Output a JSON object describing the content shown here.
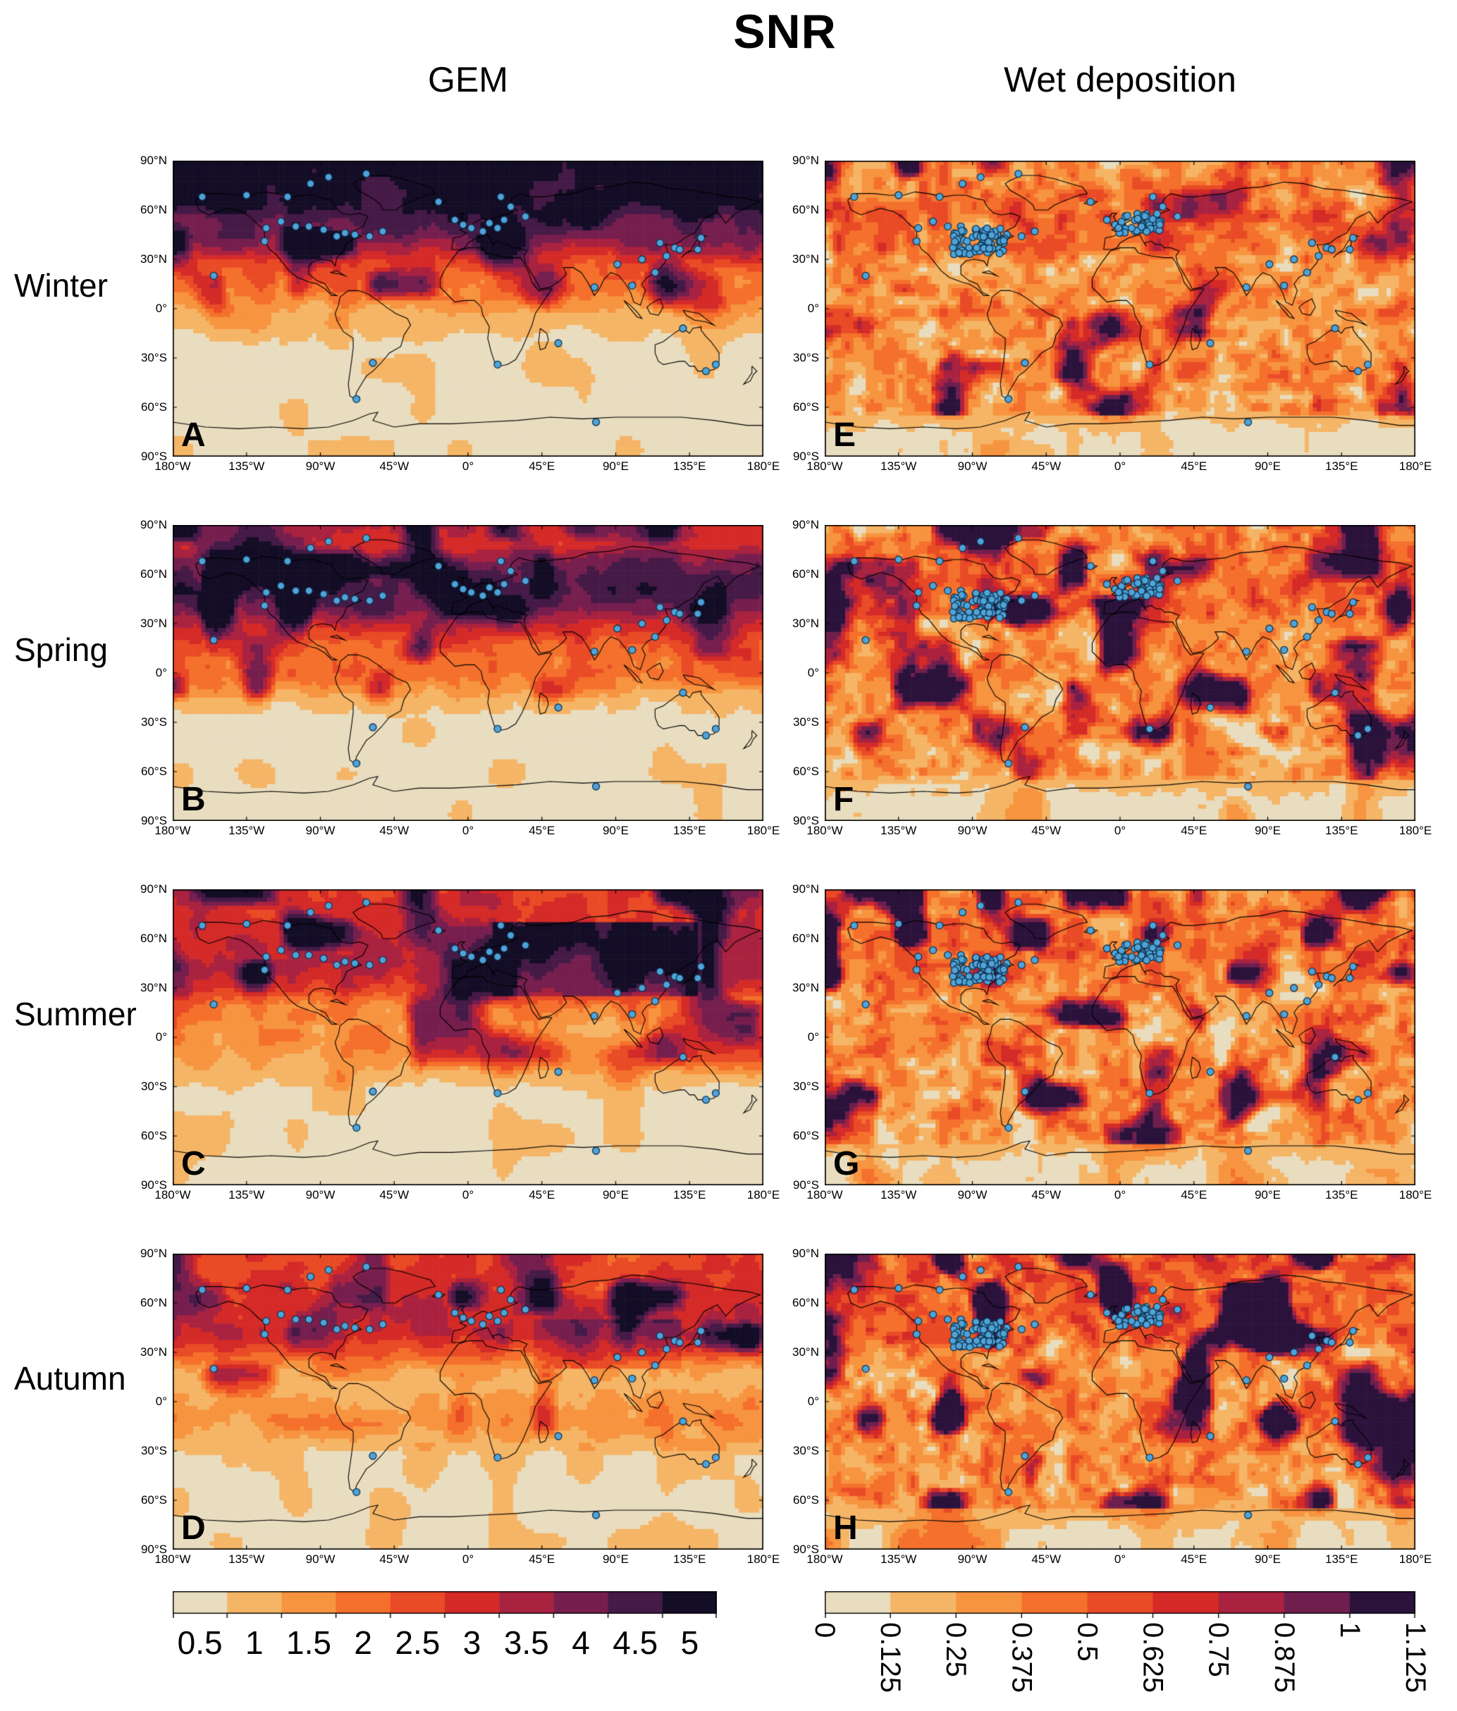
{
  "title": "SNR",
  "columns": [
    {
      "label": "GEM"
    },
    {
      "label": "Wet deposition"
    }
  ],
  "rows": [
    "Winter",
    "Spring",
    "Summer",
    "Autumn"
  ],
  "axes": {
    "lat_ticks": [
      "90°N",
      "60°N",
      "30°N",
      "0°",
      "30°S",
      "60°S",
      "90°S"
    ],
    "lon_ticks": [
      "180°W",
      "135°W",
      "90°W",
      "45°W",
      "0°",
      "45°E",
      "90°E",
      "135°E",
      "180°E"
    ],
    "lon_range": [
      -180,
      180
    ],
    "lat_range": [
      -90,
      90
    ]
  },
  "colorbars": {
    "gem": {
      "ticks": [
        "0.5",
        "1",
        "1.5",
        "2",
        "2.5",
        "3",
        "3.5",
        "4",
        "4.5",
        "5"
      ],
      "colors": [
        "#e9ddc0",
        "#f5b566",
        "#f79440",
        "#f4702c",
        "#e94b26",
        "#d42a28",
        "#a92240",
        "#761f4e",
        "#451a47",
        "#140d26"
      ]
    },
    "wet": {
      "ticks": [
        "0",
        "0.125",
        "0.25",
        "0.375",
        "0.5",
        "0.625",
        "0.75",
        "0.875",
        "1",
        "1.125"
      ],
      "colors": [
        "#e9ddc0",
        "#f5b566",
        "#f79440",
        "#f4702c",
        "#e94b26",
        "#d42a28",
        "#a92240",
        "#6e1f4e",
        "#2a123b"
      ]
    }
  },
  "chart_data": {
    "type": "heatmap",
    "title": "SNR",
    "layout": "4 seasons (rows) x 2 variables (columns: GEM, Wet deposition); equirectangular world maps with station markers; discrete colorbars below each column",
    "panels": [
      {
        "id": "A",
        "season": "Winter",
        "column": "GEM",
        "col": 0,
        "rowIndex": 0,
        "colorbar": "gem",
        "seed": 11,
        "noise": 0.55,
        "blob": 1.5,
        "lat_profile": [
          [
            90,
            5.1
          ],
          [
            65,
            5.0
          ],
          [
            55,
            4.4
          ],
          [
            45,
            4.1
          ],
          [
            35,
            3.3
          ],
          [
            25,
            2.4
          ],
          [
            15,
            2.0
          ],
          [
            5,
            1.6
          ],
          [
            -5,
            1.0
          ],
          [
            -15,
            0.75
          ],
          [
            -30,
            0.62
          ],
          [
            -90,
            0.58
          ]
        ]
      },
      {
        "id": "E",
        "season": "Winter",
        "column": "Wet deposition",
        "col": 1,
        "rowIndex": 0,
        "colorbar": "wet",
        "seed": 21,
        "noise": 0.26,
        "blob": 0.5,
        "lat_profile": [
          [
            90,
            0.33
          ],
          [
            70,
            0.42
          ],
          [
            55,
            0.5
          ],
          [
            40,
            0.45
          ],
          [
            25,
            0.3
          ],
          [
            10,
            0.33
          ],
          [
            0,
            0.36
          ],
          [
            -20,
            0.32
          ],
          [
            -40,
            0.33
          ],
          [
            -60,
            0.3
          ],
          [
            -68,
            0.15
          ],
          [
            -78,
            0.08
          ],
          [
            -90,
            0.08
          ]
        ]
      },
      {
        "id": "B",
        "season": "Spring",
        "column": "GEM",
        "col": 0,
        "rowIndex": 1,
        "colorbar": "gem",
        "seed": 12,
        "noise": 0.6,
        "blob": 1.5,
        "lat_profile": [
          [
            90,
            3.4
          ],
          [
            78,
            3.2
          ],
          [
            65,
            4.2
          ],
          [
            50,
            4.8
          ],
          [
            38,
            4.2
          ],
          [
            28,
            3.2
          ],
          [
            18,
            2.4
          ],
          [
            8,
            2.1
          ],
          [
            0,
            2.2
          ],
          [
            -8,
            1.7
          ],
          [
            -18,
            0.9
          ],
          [
            -30,
            0.62
          ],
          [
            -90,
            0.58
          ]
        ]
      },
      {
        "id": "F",
        "season": "Spring",
        "column": "Wet deposition",
        "col": 1,
        "rowIndex": 1,
        "colorbar": "wet",
        "seed": 22,
        "noise": 0.26,
        "blob": 0.55,
        "lat_profile": [
          [
            90,
            0.35
          ],
          [
            70,
            0.45
          ],
          [
            55,
            0.5
          ],
          [
            40,
            0.45
          ],
          [
            25,
            0.32
          ],
          [
            10,
            0.33
          ],
          [
            0,
            0.36
          ],
          [
            -20,
            0.33
          ],
          [
            -40,
            0.33
          ],
          [
            -60,
            0.3
          ],
          [
            -68,
            0.15
          ],
          [
            -78,
            0.08
          ],
          [
            -90,
            0.08
          ]
        ]
      },
      {
        "id": "C",
        "season": "Summer",
        "column": "GEM",
        "col": 0,
        "rowIndex": 2,
        "colorbar": "gem",
        "seed": 13,
        "noise": 0.6,
        "blob": 1.7,
        "bias": [
          {
            "lon": [
              15,
              140
            ],
            "lat": [
              25,
              70
            ],
            "add": 1.5
          }
        ],
        "lat_profile": [
          [
            90,
            2.9
          ],
          [
            75,
            3.0
          ],
          [
            60,
            3.3
          ],
          [
            45,
            3.4
          ],
          [
            30,
            2.9
          ],
          [
            18,
            1.8
          ],
          [
            8,
            1.5
          ],
          [
            0,
            1.6
          ],
          [
            -10,
            1.5
          ],
          [
            -20,
            1.1
          ],
          [
            -32,
            0.7
          ],
          [
            -90,
            0.58
          ]
        ]
      },
      {
        "id": "G",
        "season": "Summer",
        "column": "Wet deposition",
        "col": 1,
        "rowIndex": 2,
        "colorbar": "wet",
        "seed": 23,
        "noise": 0.27,
        "blob": 0.62,
        "lat_profile": [
          [
            90,
            0.4
          ],
          [
            70,
            0.45
          ],
          [
            55,
            0.5
          ],
          [
            40,
            0.45
          ],
          [
            25,
            0.35
          ],
          [
            10,
            0.35
          ],
          [
            0,
            0.38
          ],
          [
            -20,
            0.35
          ],
          [
            -40,
            0.35
          ],
          [
            -60,
            0.32
          ],
          [
            -68,
            0.18
          ],
          [
            -78,
            0.1
          ],
          [
            -90,
            0.1
          ]
        ]
      },
      {
        "id": "D",
        "season": "Autumn",
        "column": "GEM",
        "col": 0,
        "rowIndex": 3,
        "colorbar": "gem",
        "seed": 14,
        "noise": 0.55,
        "blob": 1.6,
        "bias": [
          {
            "lon": [
              40,
              130
            ],
            "lat": [
              20,
              50
            ],
            "add": 0.9
          }
        ],
        "lat_profile": [
          [
            90,
            2.7
          ],
          [
            70,
            2.9
          ],
          [
            55,
            3.1
          ],
          [
            42,
            3.3
          ],
          [
            30,
            2.5
          ],
          [
            20,
            1.5
          ],
          [
            10,
            1.1
          ],
          [
            0,
            1.4
          ],
          [
            -12,
            1.6
          ],
          [
            -22,
            1.2
          ],
          [
            -32,
            0.7
          ],
          [
            -90,
            0.58
          ]
        ]
      },
      {
        "id": "H",
        "season": "Autumn",
        "column": "Wet deposition",
        "col": 1,
        "rowIndex": 3,
        "colorbar": "wet",
        "seed": 24,
        "noise": 0.27,
        "blob": 0.7,
        "lat_profile": [
          [
            90,
            0.5
          ],
          [
            70,
            0.5
          ],
          [
            55,
            0.55
          ],
          [
            40,
            0.5
          ],
          [
            25,
            0.38
          ],
          [
            10,
            0.35
          ],
          [
            0,
            0.38
          ],
          [
            -20,
            0.35
          ],
          [
            -40,
            0.35
          ],
          [
            -60,
            0.3
          ],
          [
            -68,
            0.18
          ],
          [
            -78,
            0.1
          ],
          [
            -90,
            0.1
          ]
        ]
      }
    ],
    "stations": {
      "scattered": [
        [
          -162,
          68
        ],
        [
          -135,
          69
        ],
        [
          -110,
          68
        ],
        [
          -96,
          76
        ],
        [
          -85,
          80
        ],
        [
          -62,
          82
        ],
        [
          -123,
          49
        ],
        [
          -114,
          53
        ],
        [
          -105,
          50
        ],
        [
          -97,
          50
        ],
        [
          -88,
          48
        ],
        [
          -80,
          44
        ],
        [
          -75,
          46
        ],
        [
          -69,
          45
        ],
        [
          -60,
          44
        ],
        [
          -52,
          47
        ],
        [
          -124,
          41
        ],
        [
          -155,
          20
        ],
        [
          -18,
          65
        ],
        [
          -8,
          54
        ],
        [
          -3,
          51
        ],
        [
          2,
          49
        ],
        [
          9,
          47
        ],
        [
          13,
          52
        ],
        [
          18,
          49
        ],
        [
          22,
          54
        ],
        [
          26,
          62
        ],
        [
          20,
          68
        ],
        [
          35,
          56
        ],
        [
          77,
          13
        ],
        [
          91,
          27
        ],
        [
          100,
          14
        ],
        [
          106,
          30
        ],
        [
          114,
          22
        ],
        [
          117,
          40
        ],
        [
          121,
          32
        ],
        [
          126,
          37
        ],
        [
          129,
          36
        ],
        [
          140,
          36
        ],
        [
          142,
          43
        ],
        [
          -68,
          -55
        ],
        [
          -58,
          -33
        ],
        [
          18,
          -34
        ],
        [
          55,
          -21
        ],
        [
          131,
          -12
        ],
        [
          145,
          -38
        ],
        [
          151,
          -34
        ],
        [
          78,
          -69
        ]
      ],
      "wet_clusters": [
        {
          "center": [
            -86,
            41
          ],
          "spread": [
            16,
            8
          ],
          "count": 70
        },
        {
          "center": [
            12,
            52
          ],
          "spread": [
            13,
            6
          ],
          "count": 40
        }
      ]
    }
  }
}
